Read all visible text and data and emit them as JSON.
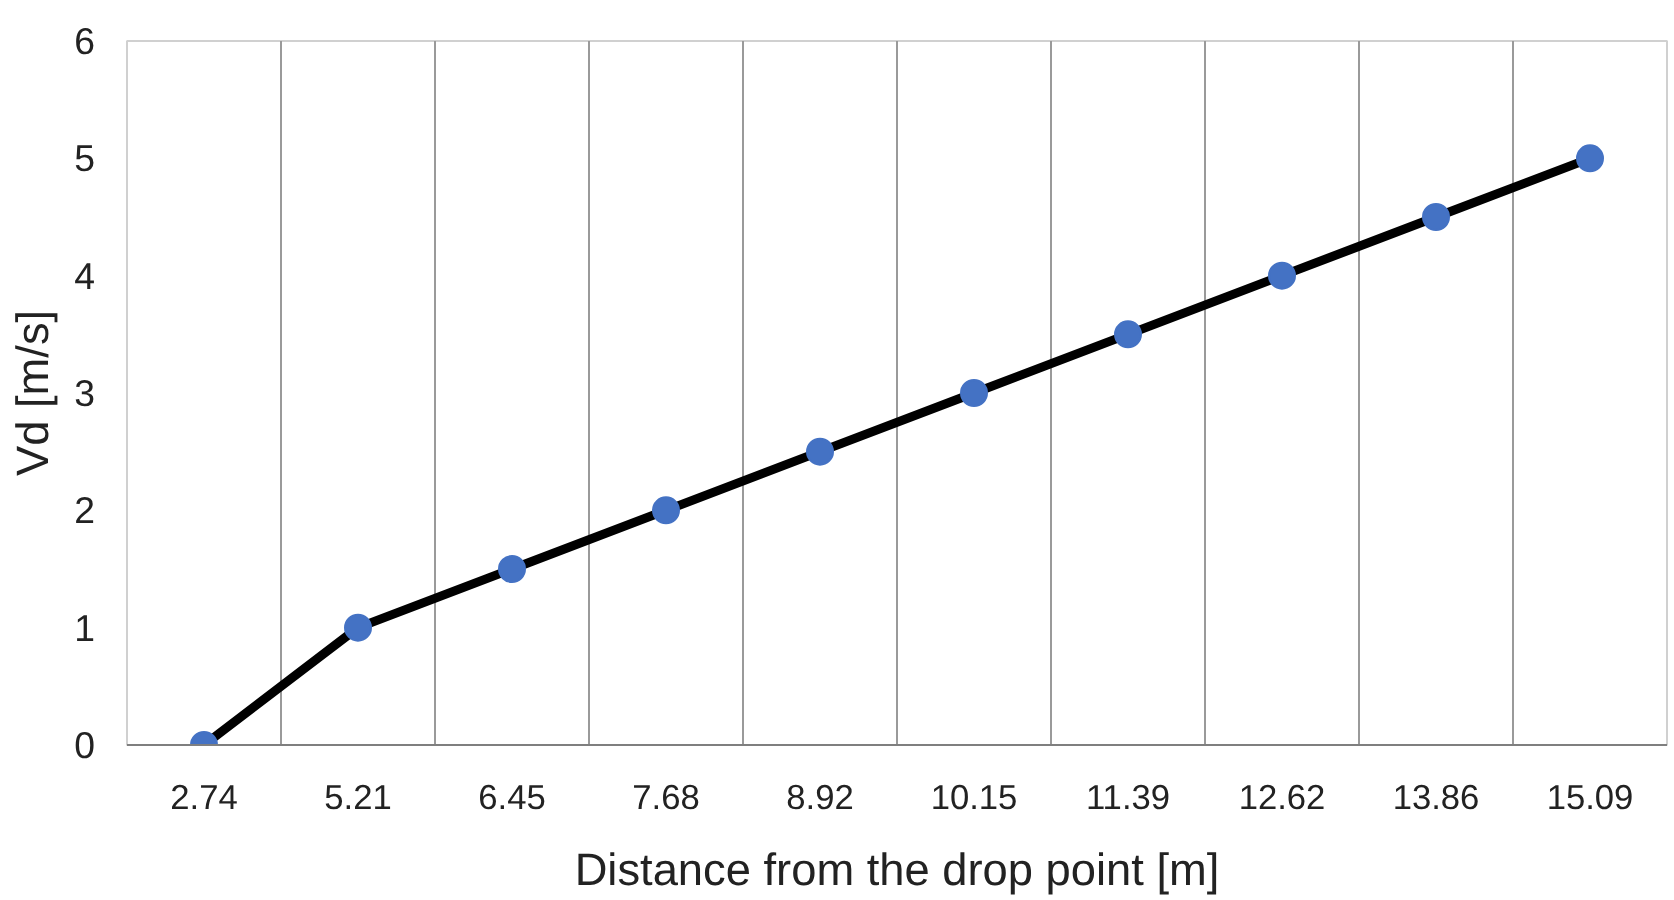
{
  "chart_data": {
    "type": "line",
    "xlabel": "Distance from the drop point [m]",
    "ylabel": "Vd [m/s]",
    "categories": [
      "2.74",
      "5.21",
      "6.45",
      "7.68",
      "8.92",
      "10.15",
      "11.39",
      "12.62",
      "13.86",
      "15.09"
    ],
    "series": [
      {
        "color": "#000000",
        "colors": [
          "#4472c4",
          "#4472c4",
          "#4472c4",
          "#4472c4",
          "#4472c4",
          "#4472c4",
          "#4472c4",
          "#4472c4",
          "#4472c4",
          "#4472c4"
        ],
        "values": [
          0,
          1,
          1.5,
          2,
          2.5,
          3,
          3.5,
          4,
          4.5,
          5
        ]
      }
    ],
    "ylim": [
      0,
      6
    ],
    "yticks": [
      0,
      1,
      2,
      3,
      4,
      5,
      6
    ],
    "grid": "x",
    "marker": "circle",
    "line_style": "solid"
  }
}
